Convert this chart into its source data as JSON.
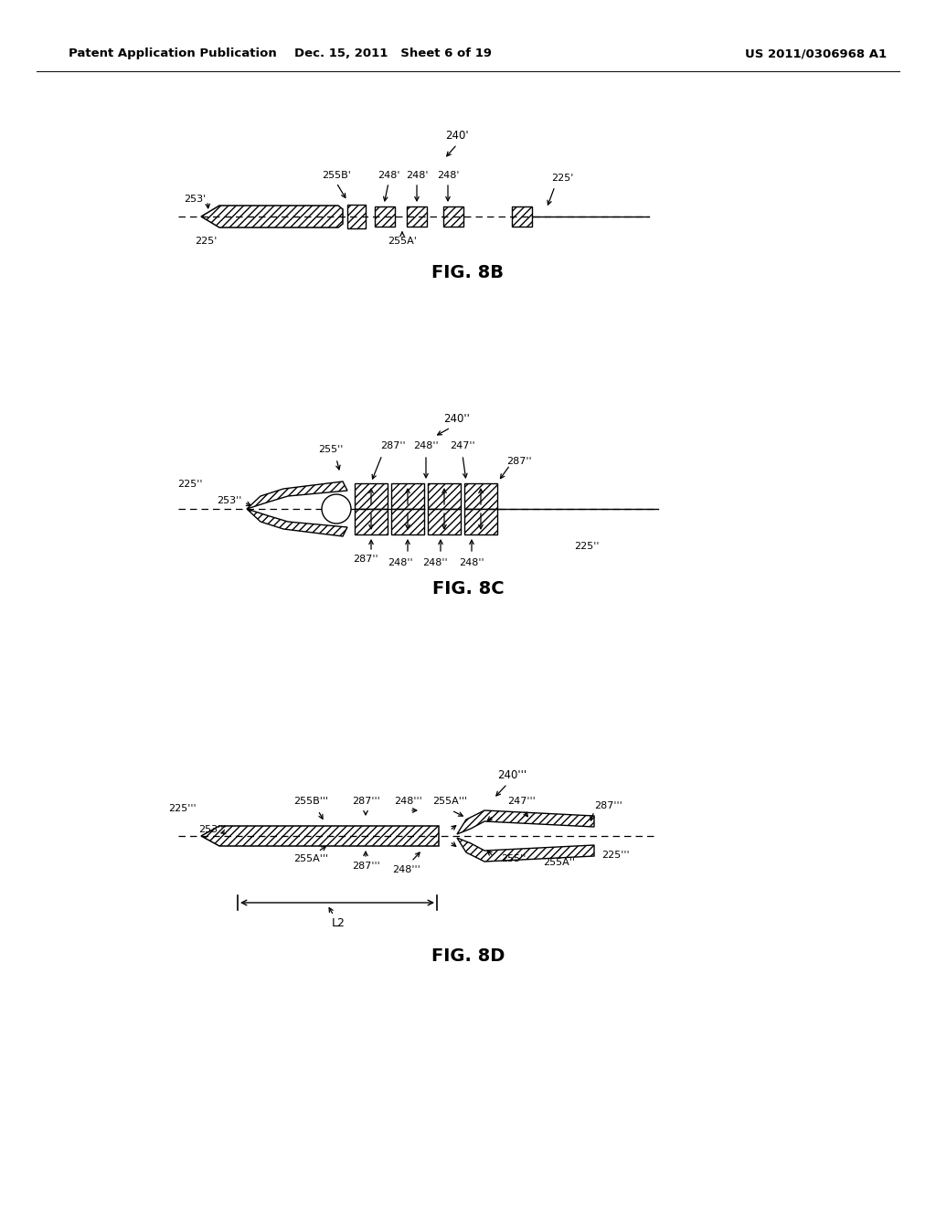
{
  "bg_color": "#ffffff",
  "header_left": "Patent Application Publication",
  "header_mid": "Dec. 15, 2011   Sheet 6 of 19",
  "header_right": "US 2011/0306968 A1"
}
